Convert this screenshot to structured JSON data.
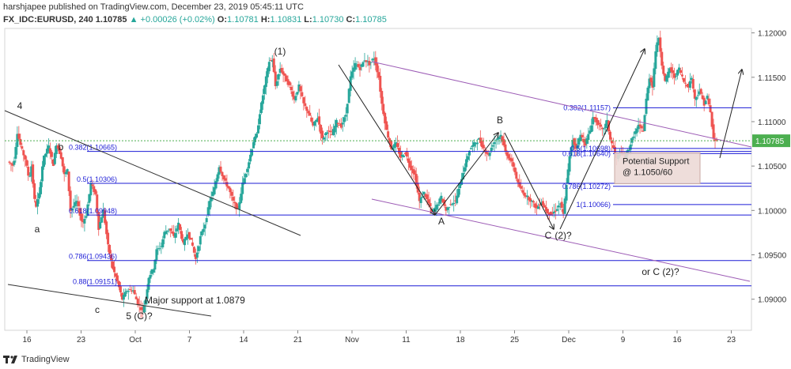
{
  "header": {
    "line1": "harshjapee published on TradingView.com, December 23, 2019 05:45:11 UTC",
    "symbol": "FX_IDC:EURUSD, 240",
    "last": "1.10785",
    "change": "▲ +0.00026 (+0.02%)",
    "o_label": "O:",
    "o": "1.10781",
    "h_label": "H:",
    "h": "1.10831",
    "l_label": "L:",
    "l": "1.10730",
    "c_label": "C:",
    "c": "1.10785"
  },
  "footer": {
    "brand": "TradingView"
  },
  "colors": {
    "up": "#26a69a",
    "down": "#ef5350",
    "fib": "#1c1cd6",
    "channel": "#9c5bb5",
    "trend": "#333333",
    "price_line": "#4caf50"
  },
  "chart_data": {
    "type": "candlestick",
    "symbol": "FX_IDC:EURUSD",
    "interval": "240",
    "ylim": [
      1.0865,
      1.1205
    ],
    "y_ticks": [
      "1.09000",
      "1.09500",
      "1.10000",
      "1.10500",
      "1.11000",
      "1.11500",
      "1.12000"
    ],
    "x_ticks": [
      "16",
      "23",
      "Oct",
      "7",
      "14",
      "21",
      "Nov",
      "11",
      "18",
      "25",
      "Dec",
      "9",
      "16",
      "23"
    ],
    "last_price": "1.10785",
    "fib_levels_left": [
      {
        "label": "0.382(1.10665)",
        "value": 1.10665
      },
      {
        "label": "0.5(1.10306)",
        "value": 1.10306
      },
      {
        "label": "0.618(1.09948)",
        "value": 1.09948
      },
      {
        "label": "0.786(1.09436)",
        "value": 1.09436
      },
      {
        "label": "0.88(1.09151)",
        "value": 1.09151
      }
    ],
    "fib_levels_right": [
      {
        "label": "0.382(1.11157)",
        "value": 1.11157
      },
      {
        "label": "0.5(1.10698)",
        "value": 1.10698
      },
      {
        "label": "0.618(1.10640)",
        "value": 1.1064
      },
      {
        "label": "0.786(1.10272)",
        "value": 1.10272
      },
      {
        "label": "1(1.10066)",
        "value": 1.10066
      }
    ],
    "support_box": {
      "line1": "Potential Support",
      "line2": "@ 1.1050/60",
      "top": 1.1065,
      "bottom": 1.103
    },
    "wave_labels": [
      "4",
      "b",
      "a",
      "c",
      "5 (C)?",
      "(1)",
      "A",
      "B",
      "C",
      "(2)?",
      "or C (2)?"
    ],
    "annotations": [
      "Major support at 1.0879"
    ],
    "waypoints": [
      [
        0,
        1.1055
      ],
      [
        7,
        1.105
      ],
      [
        12,
        1.1088
      ],
      [
        17,
        1.107
      ],
      [
        22,
        1.1058
      ],
      [
        27,
        1.1035
      ],
      [
        30,
        1.105
      ],
      [
        35,
        1.1002
      ],
      [
        40,
        1.1018
      ],
      [
        45,
        1.1058
      ],
      [
        52,
        1.1072
      ],
      [
        58,
        1.1052
      ],
      [
        62,
        1.1075
      ],
      [
        68,
        1.106
      ],
      [
        72,
        1.104
      ],
      [
        76,
        1.1045
      ],
      [
        80,
        1.1
      ],
      [
        88,
        1.101
      ],
      [
        95,
        1.0985
      ],
      [
        100,
        1.0995
      ],
      [
        106,
        1.103
      ],
      [
        112,
        1.1018
      ],
      [
        116,
        1.098
      ],
      [
        122,
        1.1
      ],
      [
        128,
        1.096
      ],
      [
        134,
        1.0935
      ],
      [
        140,
        1.092
      ],
      [
        146,
        1.09
      ],
      [
        152,
        1.091
      ],
      [
        160,
        1.091
      ],
      [
        166,
        1.0895
      ],
      [
        172,
        1.0887
      ],
      [
        176,
        1.09
      ],
      [
        180,
        1.0925
      ],
      [
        186,
        1.0935
      ],
      [
        190,
        1.0955
      ],
      [
        196,
        1.096
      ],
      [
        200,
        1.0975
      ],
      [
        206,
        1.098
      ],
      [
        212,
        1.097
      ],
      [
        218,
        1.0985
      ],
      [
        224,
        1.0962
      ],
      [
        230,
        1.0975
      ],
      [
        236,
        1.096
      ],
      [
        240,
        1.0945
      ],
      [
        246,
        1.097
      ],
      [
        252,
        1.0985
      ],
      [
        258,
        1.101
      ],
      [
        264,
        1.1025
      ],
      [
        270,
        1.105
      ],
      [
        276,
        1.1035
      ],
      [
        282,
        1.1025
      ],
      [
        288,
        1.101
      ],
      [
        294,
        1.1
      ],
      [
        300,
        1.103
      ],
      [
        308,
        1.1055
      ],
      [
        314,
        1.1078
      ],
      [
        318,
        1.1085
      ],
      [
        322,
        1.111
      ],
      [
        328,
        1.114
      ],
      [
        334,
        1.1168
      ],
      [
        338,
        1.117
      ],
      [
        342,
        1.114
      ],
      [
        348,
        1.116
      ],
      [
        354,
        1.115
      ],
      [
        360,
        1.114
      ],
      [
        366,
        1.1125
      ],
      [
        372,
        1.114
      ],
      [
        378,
        1.112
      ],
      [
        384,
        1.111
      ],
      [
        390,
        1.1095
      ],
      [
        396,
        1.1105
      ],
      [
        402,
        1.108
      ],
      [
        408,
        1.109
      ],
      [
        414,
        1.1085
      ],
      [
        420,
        1.11
      ],
      [
        426,
        1.1095
      ],
      [
        432,
        1.1108
      ],
      [
        438,
        1.115
      ],
      [
        444,
        1.1165
      ],
      [
        450,
        1.116
      ],
      [
        456,
        1.117
      ],
      [
        462,
        1.1165
      ],
      [
        468,
        1.1172
      ],
      [
        474,
        1.115
      ],
      [
        478,
        1.112
      ],
      [
        484,
        1.109
      ],
      [
        490,
        1.107
      ],
      [
        496,
        1.1075
      ],
      [
        502,
        1.106
      ],
      [
        508,
        1.1065
      ],
      [
        514,
        1.105
      ],
      [
        520,
        1.104
      ],
      [
        526,
        1.101
      ],
      [
        532,
        1.102
      ],
      [
        538,
        1.1008
      ],
      [
        542,
        1.0998
      ],
      [
        548,
        1.1005
      ],
      [
        554,
        1.1015
      ],
      [
        560,
        1.1
      ],
      [
        566,
        1.1008
      ],
      [
        572,
        1.101
      ],
      [
        578,
        1.103
      ],
      [
        584,
        1.105
      ],
      [
        590,
        1.1068
      ],
      [
        596,
        1.1075
      ],
      [
        602,
        1.108
      ],
      [
        608,
        1.107
      ],
      [
        614,
        1.1062
      ],
      [
        620,
        1.1075
      ],
      [
        626,
        1.1082
      ],
      [
        630,
        1.1085
      ],
      [
        636,
        1.1066
      ],
      [
        640,
        1.106
      ],
      [
        646,
        1.105
      ],
      [
        652,
        1.103
      ],
      [
        658,
        1.102
      ],
      [
        664,
        1.1015
      ],
      [
        670,
        1.101
      ],
      [
        676,
        1.1002
      ],
      [
        682,
        1.101
      ],
      [
        688,
        1.1
      ],
      [
        694,
        1.0995
      ],
      [
        700,
        1.1
      ],
      [
        706,
        1.1008
      ],
      [
        710,
        1.0995
      ],
      [
        714,
        1.103
      ],
      [
        718,
        1.106
      ],
      [
        722,
        1.108
      ],
      [
        726,
        1.107
      ],
      [
        732,
        1.1085
      ],
      [
        738,
        1.1075
      ],
      [
        744,
        1.109
      ],
      [
        748,
        1.1105
      ],
      [
        754,
        1.1098
      ],
      [
        760,
        1.109
      ],
      [
        766,
        1.11
      ],
      [
        770,
        1.108
      ],
      [
        774,
        1.107
      ],
      [
        778,
        1.1058
      ],
      [
        782,
        1.1065
      ],
      [
        788,
        1.106
      ],
      [
        794,
        1.107
      ],
      [
        800,
        1.1085
      ],
      [
        806,
        1.1095
      ],
      [
        812,
        1.109
      ],
      [
        816,
        1.1125
      ],
      [
        820,
        1.115
      ],
      [
        824,
        1.114
      ],
      [
        828,
        1.118
      ],
      [
        832,
        1.1195
      ],
      [
        836,
        1.1165
      ],
      [
        840,
        1.1145
      ],
      [
        846,
        1.116
      ],
      [
        852,
        1.115
      ],
      [
        858,
        1.116
      ],
      [
        864,
        1.1145
      ],
      [
        870,
        1.114
      ],
      [
        874,
        1.115
      ],
      [
        878,
        1.1125
      ],
      [
        884,
        1.1135
      ],
      [
        890,
        1.112
      ],
      [
        894,
        1.1128
      ],
      [
        898,
        1.111
      ],
      [
        902,
        1.108
      ],
      [
        906,
        1.1078
      ]
    ]
  }
}
